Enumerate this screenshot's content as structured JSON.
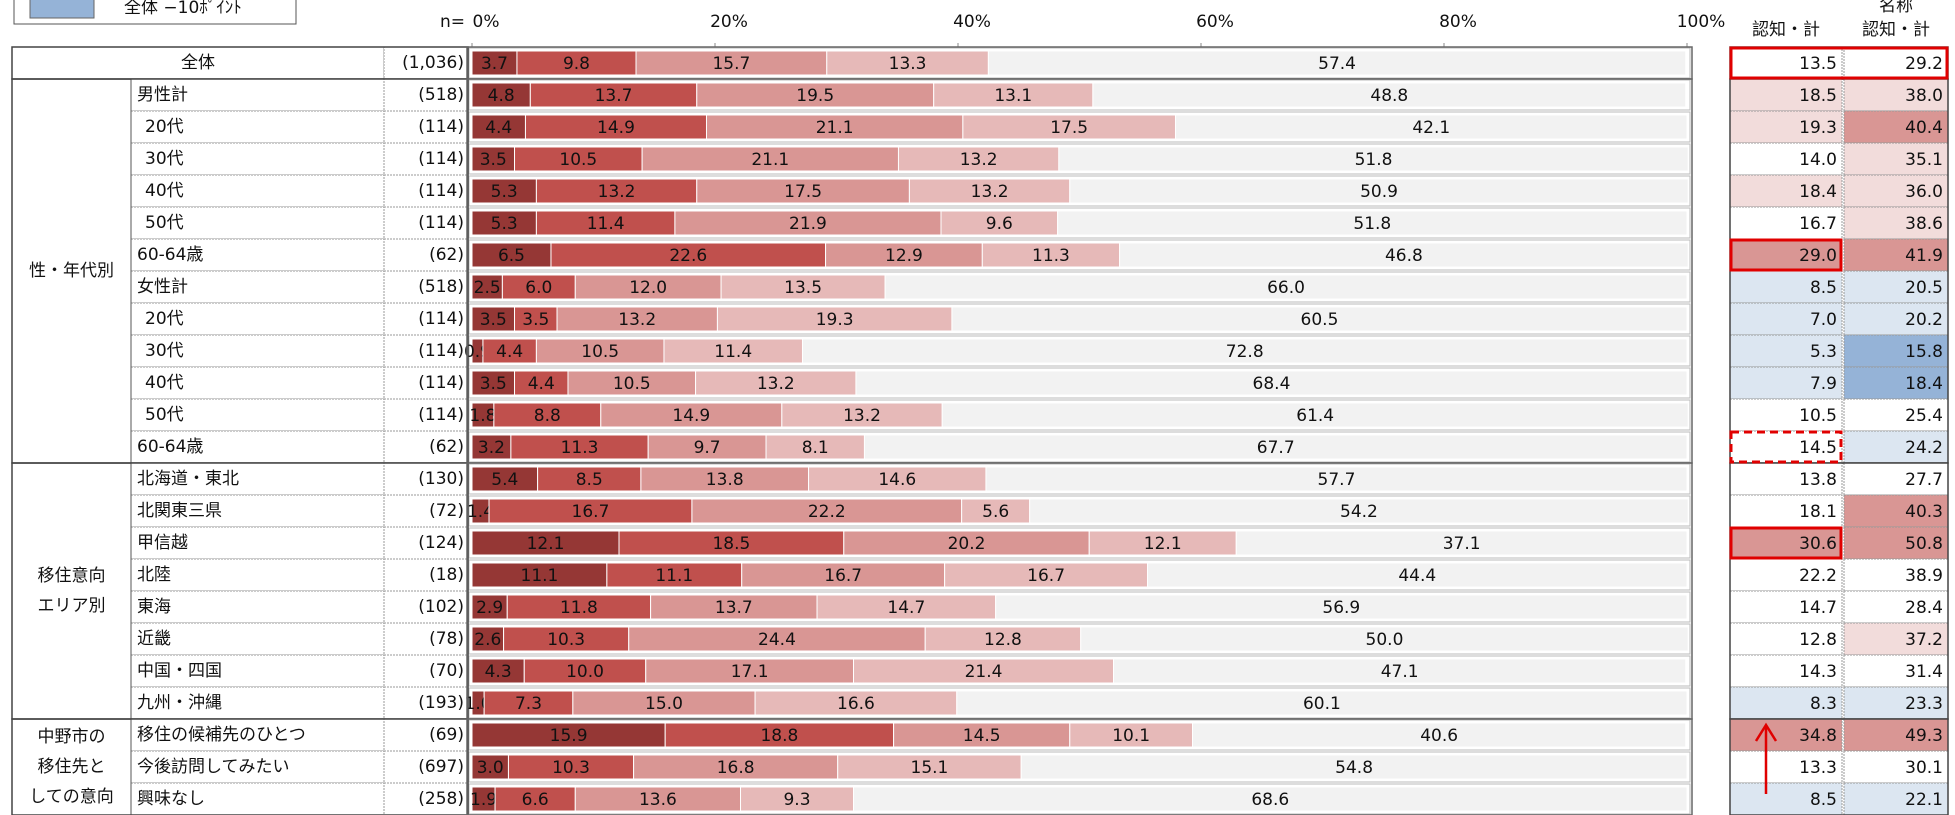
{
  "legend": {
    "label": "全体 −10ﾎﾟｲﾝﾄ",
    "color": "#95b3d7"
  },
  "header": {
    "n": "n=",
    "col1": "認知・計",
    "col2_top": "名称",
    "col2": "認知・計"
  },
  "chart_data": {
    "type": "bar",
    "orientation": "horizontal",
    "stacked": true,
    "xlim": [
      0,
      100
    ],
    "xticks": [
      {
        "value": 0,
        "label": "0%"
      },
      {
        "value": 20,
        "label": "20%"
      },
      {
        "value": 40,
        "label": "40%"
      },
      {
        "value": 60,
        "label": "60%"
      },
      {
        "value": 80,
        "label": "80%"
      },
      {
        "value": 100,
        "label": "100%"
      }
    ],
    "colors": [
      "#953735",
      "#c0504d",
      "#d99694",
      "#e6b9b8",
      "#f2f2f2"
    ],
    "label_colors": [
      "#ffffff",
      "#ffffff",
      "#111111",
      "#111111",
      "#111111"
    ],
    "groups": [
      {
        "rows": [
          {
            "label": "全体",
            "n": "(1,036)",
            "values": [
              3.7,
              9.8,
              15.7,
              13.3,
              57.4
            ],
            "stats": [
              13.5,
              29.2
            ],
            "stat_colors": [
              "#ffffff",
              "#ffffff"
            ]
          }
        ]
      },
      {
        "label": [
          "性・年代別"
        ],
        "rows": [
          {
            "label": "男性計",
            "n": "(518)",
            "values": [
              4.8,
              13.7,
              19.5,
              13.1,
              48.8
            ],
            "stats": [
              18.5,
              38.0
            ],
            "stat_colors": [
              "#f2dcdb",
              "#f2dcdb"
            ]
          },
          {
            "label": "20代",
            "n": "(114)",
            "values": [
              4.4,
              14.9,
              21.1,
              17.5,
              42.1
            ],
            "stats": [
              19.3,
              40.4
            ],
            "stat_colors": [
              "#f2dcdb",
              "#d99694"
            ]
          },
          {
            "label": "30代",
            "n": "(114)",
            "values": [
              3.5,
              10.5,
              21.1,
              13.2,
              51.8
            ],
            "stats": [
              14.0,
              35.1
            ],
            "stat_colors": [
              "#ffffff",
              "#f2dcdb"
            ]
          },
          {
            "label": "40代",
            "n": "(114)",
            "values": [
              5.3,
              13.2,
              17.5,
              13.2,
              50.9
            ],
            "stats": [
              18.4,
              36.0
            ],
            "stat_colors": [
              "#f2dcdb",
              "#f2dcdb"
            ]
          },
          {
            "label": "50代",
            "n": "(114)",
            "values": [
              5.3,
              11.4,
              21.9,
              9.6,
              51.8
            ],
            "stats": [
              16.7,
              38.6
            ],
            "stat_colors": [
              "#ffffff",
              "#f2dcdb"
            ]
          },
          {
            "label": "60-64歳",
            "n": "(62)",
            "values": [
              6.5,
              22.6,
              12.9,
              11.3,
              46.8
            ],
            "stats": [
              29.0,
              41.9
            ],
            "stat_colors": [
              "#d99694",
              "#d99694"
            ]
          },
          {
            "label": "女性計",
            "n": "(518)",
            "values": [
              2.5,
              6.0,
              12.0,
              13.5,
              66.0
            ],
            "stats": [
              8.5,
              20.5
            ],
            "stat_colors": [
              "#dce6f1",
              "#dce6f1"
            ]
          },
          {
            "label": "20代",
            "n": "(114)",
            "values": [
              3.5,
              3.5,
              13.2,
              19.3,
              60.5
            ],
            "stats": [
              7.0,
              20.2
            ],
            "stat_colors": [
              "#dce6f1",
              "#dce6f1"
            ]
          },
          {
            "label": "30代",
            "n": "(114)",
            "values": [
              0.9,
              4.4,
              10.5,
              11.4,
              72.8
            ],
            "stats": [
              5.3,
              15.8
            ],
            "stat_colors": [
              "#dce6f1",
              "#95b3d7"
            ]
          },
          {
            "label": "40代",
            "n": "(114)",
            "values": [
              3.5,
              4.4,
              10.5,
              13.2,
              68.4
            ],
            "stats": [
              7.9,
              18.4
            ],
            "stat_colors": [
              "#dce6f1",
              "#95b3d7"
            ]
          },
          {
            "label": "50代",
            "n": "(114)",
            "values": [
              1.8,
              8.8,
              14.9,
              13.2,
              61.4
            ],
            "stats": [
              10.5,
              25.4
            ],
            "stat_colors": [
              "#ffffff",
              "#ffffff"
            ]
          },
          {
            "label": "60-64歳",
            "n": "(62)",
            "values": [
              3.2,
              11.3,
              9.7,
              8.1,
              67.7
            ],
            "stats": [
              14.5,
              24.2
            ],
            "stat_colors": [
              "#ffffff",
              "#dce6f1"
            ]
          }
        ]
      },
      {
        "label": [
          "移住意向",
          "エリア別"
        ],
        "rows": [
          {
            "label": "北海道・東北",
            "n": "(130)",
            "values": [
              5.4,
              8.5,
              13.8,
              14.6,
              57.7
            ],
            "stats": [
              13.8,
              27.7
            ],
            "stat_colors": [
              "#ffffff",
              "#ffffff"
            ]
          },
          {
            "label": "北関東三県",
            "n": "(72)",
            "values": [
              1.4,
              16.7,
              22.2,
              5.6,
              54.2
            ],
            "stats": [
              18.1,
              40.3
            ],
            "stat_colors": [
              "#ffffff",
              "#d99694"
            ]
          },
          {
            "label": "甲信越",
            "n": "(124)",
            "values": [
              12.1,
              18.5,
              20.2,
              12.1,
              37.1
            ],
            "stats": [
              30.6,
              50.8
            ],
            "stat_colors": [
              "#d99694",
              "#d99694"
            ]
          },
          {
            "label": "北陸",
            "n": "(18)",
            "values": [
              11.1,
              11.1,
              16.7,
              16.7,
              44.4
            ],
            "stats": [
              22.2,
              38.9
            ],
            "stat_colors": [
              "#ffffff",
              "#ffffff"
            ]
          },
          {
            "label": "東海",
            "n": "(102)",
            "values": [
              2.9,
              11.8,
              13.7,
              14.7,
              56.9
            ],
            "stats": [
              14.7,
              28.4
            ],
            "stat_colors": [
              "#ffffff",
              "#ffffff"
            ]
          },
          {
            "label": "近畿",
            "n": "(78)",
            "values": [
              2.6,
              10.3,
              24.4,
              12.8,
              50.0
            ],
            "stats": [
              12.8,
              37.2
            ],
            "stat_colors": [
              "#ffffff",
              "#f2dcdb"
            ]
          },
          {
            "label": "中国・四国",
            "n": "(70)",
            "values": [
              4.3,
              10.0,
              17.1,
              21.4,
              47.1
            ],
            "stats": [
              14.3,
              31.4
            ],
            "stat_colors": [
              "#ffffff",
              "#ffffff"
            ]
          },
          {
            "label": "九州・沖縄",
            "n": "(193)",
            "values": [
              1.0,
              7.3,
              15.0,
              16.6,
              60.1
            ],
            "stats": [
              8.3,
              23.3
            ],
            "stat_colors": [
              "#dce6f1",
              "#dce6f1"
            ]
          }
        ]
      },
      {
        "label": [
          "中野市の",
          "移住先と",
          "しての意向"
        ],
        "rows": [
          {
            "label": "移住の候補先のひとつ",
            "n": "(69)",
            "values": [
              15.9,
              18.8,
              14.5,
              10.1,
              40.6
            ],
            "stats": [
              34.8,
              49.3
            ],
            "stat_colors": [
              "#d99694",
              "#d99694"
            ]
          },
          {
            "label": "今後訪問してみたい",
            "n": "(697)",
            "values": [
              3.0,
              10.3,
              16.8,
              15.1,
              54.8
            ],
            "stats": [
              13.3,
              30.1
            ],
            "stat_colors": [
              "#ffffff",
              "#ffffff"
            ]
          },
          {
            "label": "興味なし",
            "n": "(258)",
            "values": [
              1.9,
              6.6,
              13.6,
              9.3,
              68.6
            ],
            "stats": [
              8.5,
              22.1
            ],
            "stat_colors": [
              "#dce6f1",
              "#dce6f1"
            ]
          }
        ]
      }
    ]
  }
}
